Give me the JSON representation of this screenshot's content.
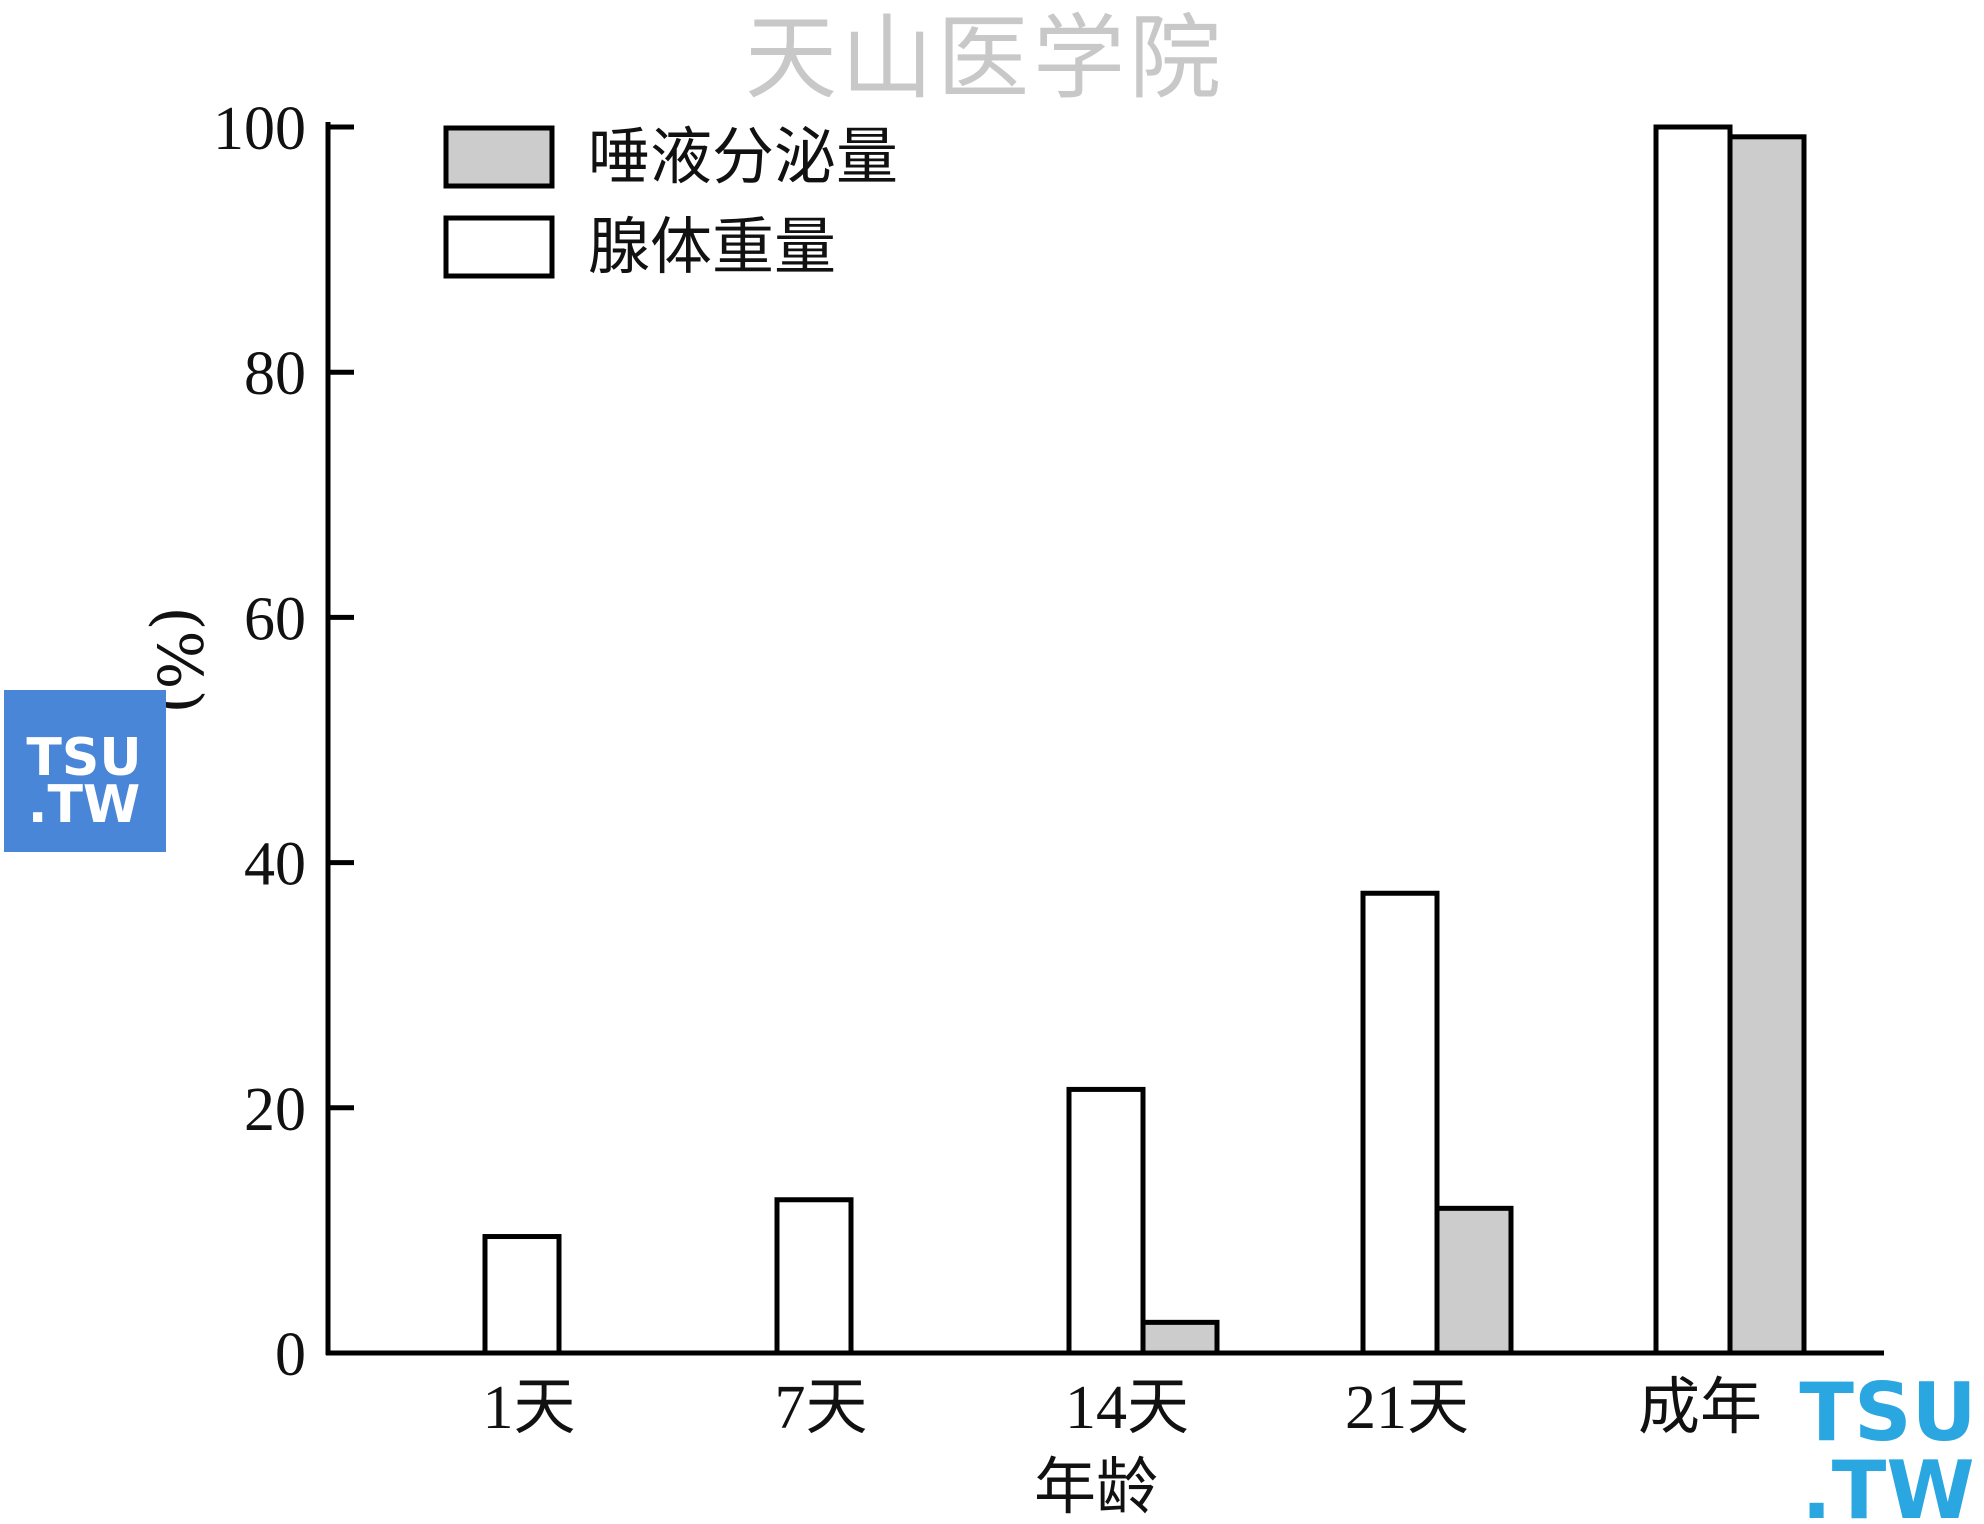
{
  "watermark_top": "天山医学院",
  "logo_left": {
    "line1": "TSU",
    "line2": ".TW",
    "bg": "#4a86d8"
  },
  "logo_right": {
    "line1": "TSU",
    "line2": ".TW",
    "color": "#2aa6e0",
    "dot_color": "#3fd6c8"
  },
  "colors": {
    "secretion_fill": "#cccccc",
    "weight_fill": "#ffffff",
    "stroke": "#000000"
  },
  "chart_data": {
    "type": "bar",
    "categories": [
      "1天",
      "7天",
      "14天",
      "21天",
      "成年"
    ],
    "series": [
      {
        "name": "腺体重量",
        "values": [
          9.5,
          12.5,
          21.5,
          37.5,
          100
        ]
      },
      {
        "name": "唾液分泌量",
        "values": [
          0,
          0,
          2.5,
          11.8,
          99.2
        ]
      }
    ],
    "legend": [
      {
        "name": "唾液分泌量",
        "fill": "#cccccc"
      },
      {
        "name": "腺体重量",
        "fill": "#ffffff"
      }
    ],
    "legend_position": "top-left",
    "xlabel": "年龄",
    "ylabel": "(%)",
    "ylim": [
      0,
      100
    ],
    "yticks": [
      0,
      20,
      40,
      60,
      80,
      100
    ],
    "grid": false
  }
}
